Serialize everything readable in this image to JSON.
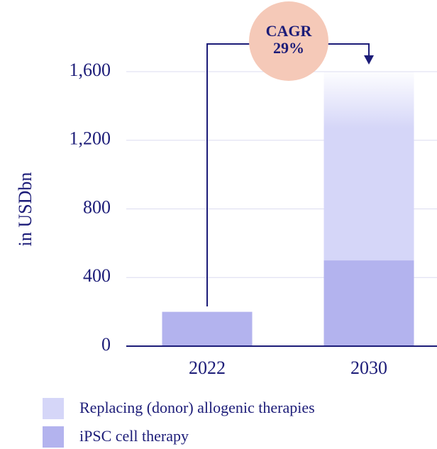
{
  "chart_data": {
    "type": "stacked-bar",
    "y_label": "in USDbn",
    "annotation": [
      "CAGR",
      "29%"
    ],
    "categories": [
      "2022",
      "2030"
    ],
    "series": [
      {
        "name": "iPSC cell therapy",
        "color": "#b3b3ee",
        "values": [
          200,
          500
        ]
      },
      {
        "name": "Replacing (donor) allogenic therapies",
        "color": "#d5d6f8",
        "values": [
          0,
          1100
        ]
      }
    ],
    "ylim": [
      0,
      1600
    ],
    "yticks": [
      0,
      400,
      800,
      {
        "value": 1200,
        "label": "1,200"
      },
      {
        "value": 1600,
        "label": "1,600"
      }
    ],
    "grid": true
  }
}
